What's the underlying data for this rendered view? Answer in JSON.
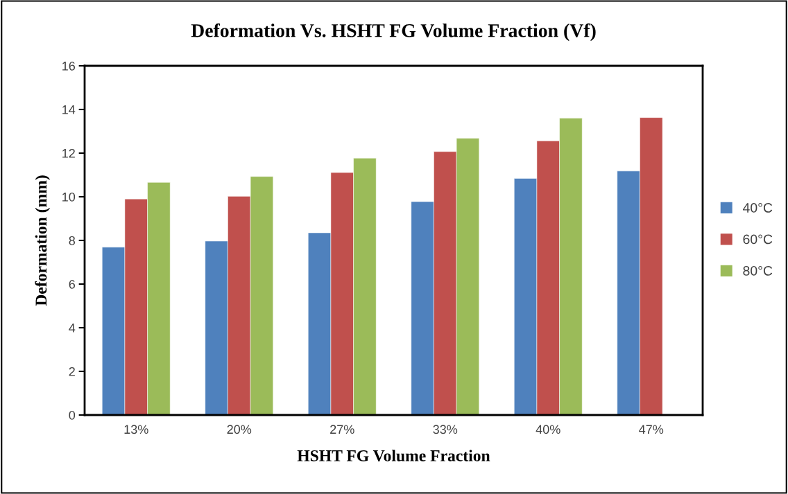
{
  "chart_data": {
    "type": "bar",
    "title": "Deformation Vs. HSHT FG Volume Fraction (Vf)",
    "xlabel": "HSHT FG Volume Fraction",
    "ylabel": "Deformation (mm)",
    "categories": [
      "13%",
      "20%",
      "27%",
      "33%",
      "40%",
      "47%"
    ],
    "series": [
      {
        "name": "40°C",
        "color": "#4f81bd",
        "values": [
          7.69,
          7.97,
          8.35,
          9.78,
          10.84,
          11.18
        ]
      },
      {
        "name": "60°C",
        "color": "#c0504d",
        "values": [
          9.9,
          10.02,
          11.11,
          12.07,
          12.56,
          13.63
        ]
      },
      {
        "name": "80°C",
        "color": "#9bbb59",
        "values": [
          10.66,
          10.93,
          11.77,
          12.68,
          13.6,
          null
        ]
      }
    ],
    "ylim": [
      0,
      16
    ],
    "yticks": [
      0,
      2,
      4,
      6,
      8,
      10,
      12,
      14,
      16
    ],
    "grid": false,
    "legend": "right"
  }
}
